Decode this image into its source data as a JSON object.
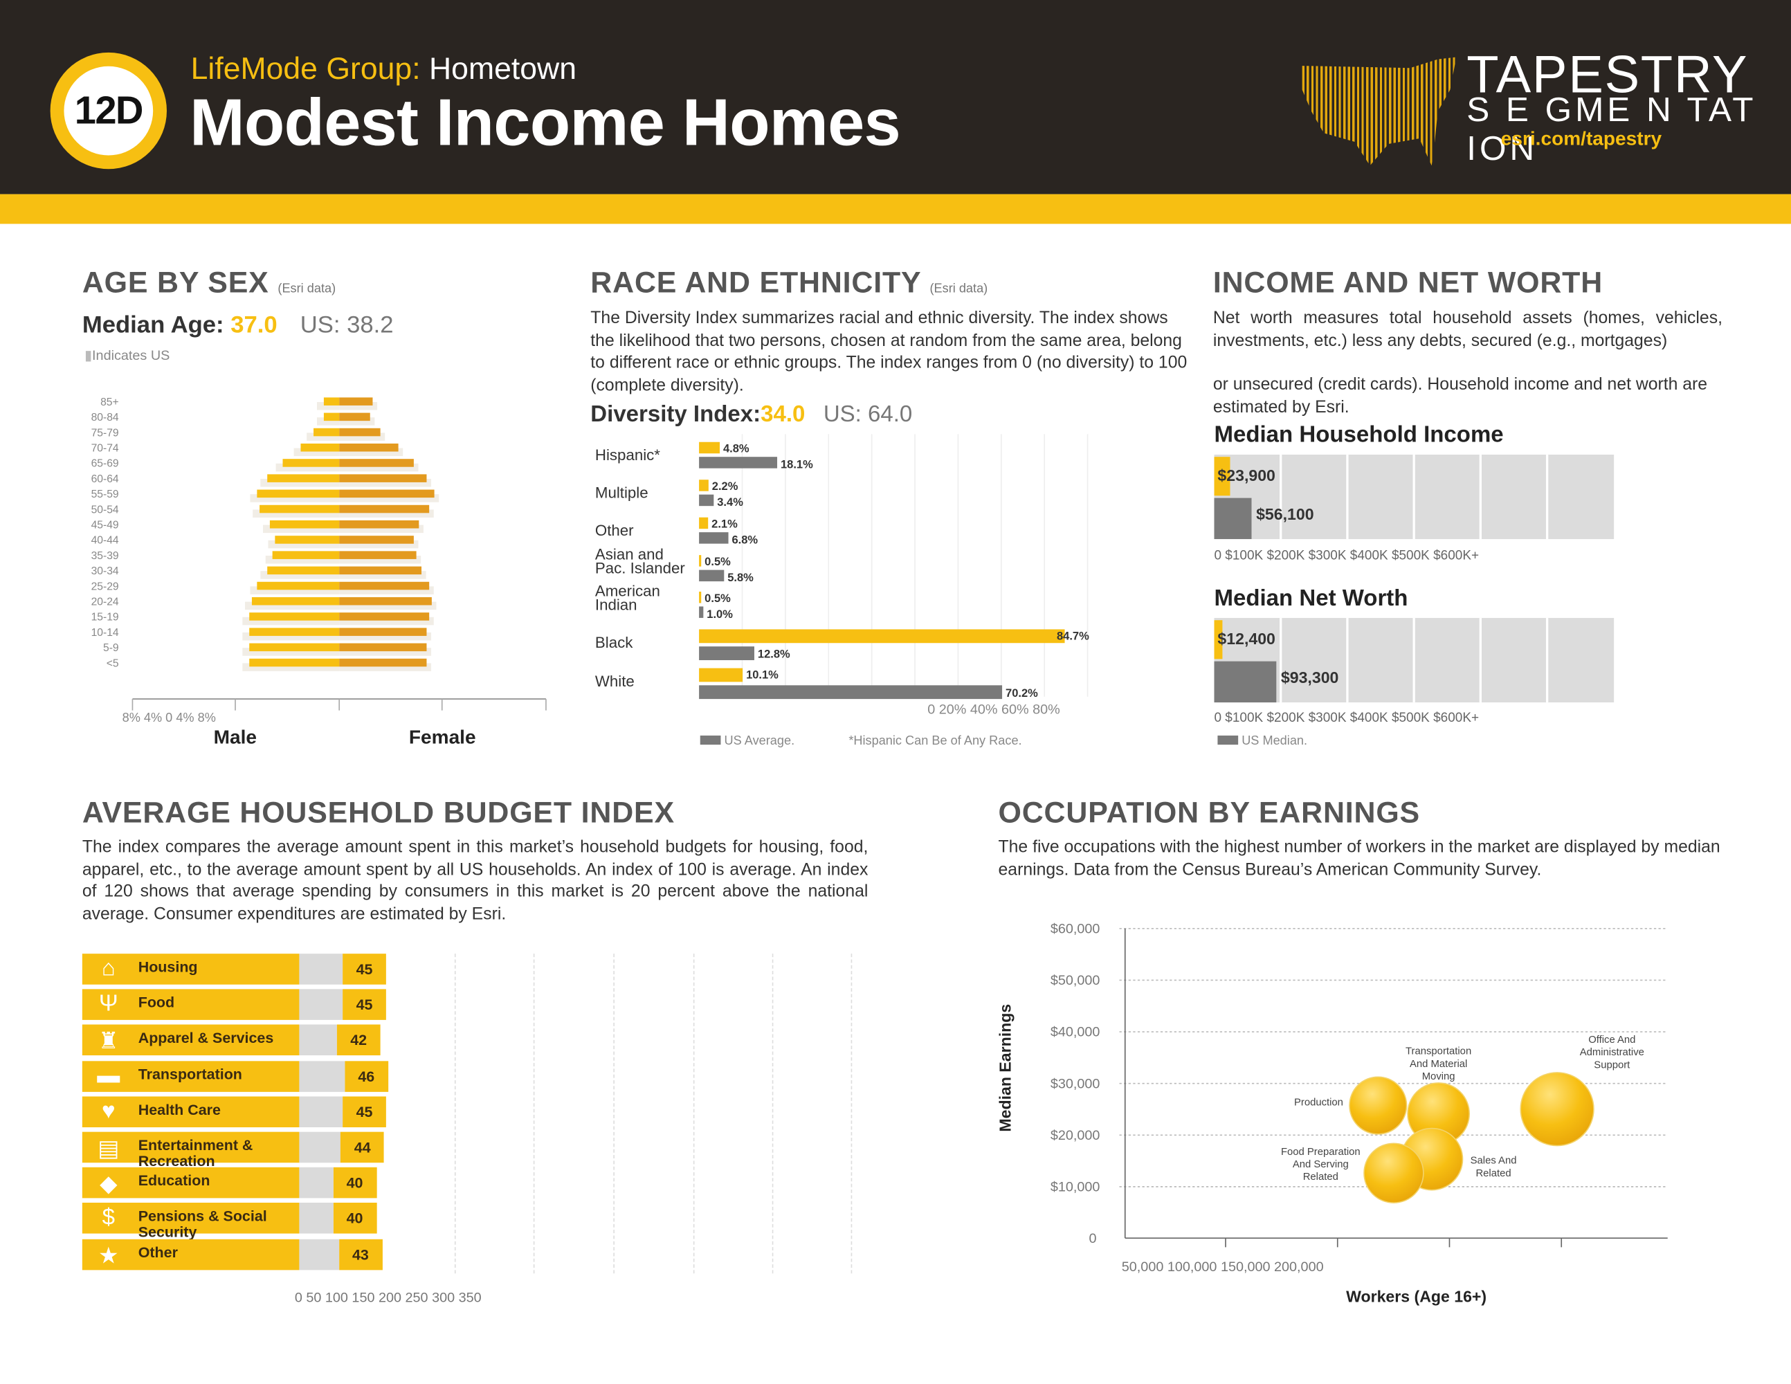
{
  "header": {
    "segment_code": "12D",
    "lifemode_label": "LifeMode Group:",
    "lifemode_name": "Hometown",
    "title": "Modest Income Homes",
    "brand_line1": "TAPESTRY",
    "brand_line2": "S E GME N TAT ION",
    "brand_url": "esri.com/tapestry"
  },
  "colors": {
    "accent": "#f7bf12",
    "dark": "#2a2521",
    "us": "#7a7a7a",
    "female": "#e39a1f"
  },
  "age": {
    "heading": "AGE BY SEX",
    "source": "(Esri data)",
    "median_label": "Median Age:",
    "median_value": "37.0",
    "us_median": "US: 38.2",
    "us_note": "Indicates US",
    "axis_text": "8% 4% 0 4% 8%",
    "male_label": "Male",
    "female_label": "Female"
  },
  "race": {
    "heading": "RACE AND ETHNICITY",
    "source": "(Esri data)",
    "description": "The Diversity Index summarizes racial and ethnic diversity. The index shows the likelihood that two persons, chosen at random from the same area, belong to different race or ethnic groups. The index ranges from 0 (no diversity) to 100 (complete diversity).",
    "diversity_label": "Diversity Index:",
    "diversity_value": "34.0",
    "diversity_us": "US: 64.0",
    "axis_text": "0 20% 40% 60% 80%",
    "legend_us": "US Average.",
    "footnote": "*Hispanic Can Be of Any Race."
  },
  "income": {
    "heading": "INCOME AND NET WORTH",
    "description_1": "Net worth measures total household assets (homes, vehicles, investments, etc.) less any debts, secured (e.g., mortgages)",
    "description_2": "or unsecured (credit cards). Household income and net worth are estimated by Esri.",
    "hh_income_title": "Median Household Income",
    "net_worth_title": "Median Net Worth",
    "axis_text": "0 $100K $200K $300K $400K $500K $600K+",
    "legend_us": "US Median."
  },
  "budget": {
    "heading": "AVERAGE HOUSEHOLD BUDGET INDEX",
    "description": "The index compares the average amount spent in this market’s household budgets for housing, food, apparel, etc., to the average amount spent by all US households. An index of 100 is average. An index of 120 shows that average spending by consumers in this market is 20 percent above the national average. Consumer expenditures are estimated by Esri.",
    "axis_text": "0 50 100 150 200 250 300 350"
  },
  "occupation": {
    "heading": "OCCUPATION BY EARNINGS",
    "description": "The five occupations with the highest number of workers in the market are displayed by median earnings. Data from the Census Bureau’s American Community Survey."
  },
  "chart_data": [
    {
      "type": "bar",
      "title": "Age by Sex",
      "orientation": "horizontal-pyramid",
      "categories": [
        "85+",
        "80-84",
        "75-79",
        "70-74",
        "65-69",
        "60-64",
        "55-59",
        "50-54",
        "45-49",
        "40-44",
        "35-39",
        "30-34",
        "25-29",
        "20-24",
        "15-19",
        "10-14",
        "5-9",
        "<5"
      ],
      "series": [
        {
          "name": "Male",
          "values": [
            0.6,
            0.6,
            1.0,
            1.5,
            2.2,
            2.8,
            3.2,
            3.1,
            2.7,
            2.5,
            2.6,
            2.8,
            3.2,
            3.4,
            3.5,
            3.5,
            3.5,
            3.5
          ]
        },
        {
          "name": "Female",
          "values": [
            1.3,
            1.2,
            1.6,
            2.3,
            2.9,
            3.4,
            3.7,
            3.5,
            3.1,
            2.9,
            3.0,
            3.2,
            3.5,
            3.6,
            3.5,
            3.4,
            3.4,
            3.4
          ]
        }
      ],
      "xlabel": "%",
      "xlim": [
        -8,
        8
      ]
    },
    {
      "type": "bar",
      "title": "Race and Ethnicity",
      "orientation": "horizontal",
      "categories": [
        "Hispanic*",
        "Multiple",
        "Other",
        "Asian and\nPac. Islander",
        "American\nIndian",
        "Black",
        "White"
      ],
      "series": [
        {
          "name": "Segment",
          "values": [
            4.8,
            2.2,
            2.1,
            0.5,
            0.5,
            84.7,
            10.1
          ],
          "labels": [
            "4.8%",
            "2.2%",
            "2.1%",
            "0.5%",
            "0.5%",
            "84.7%",
            "10.1%"
          ]
        },
        {
          "name": "US Average",
          "values": [
            18.1,
            3.4,
            6.8,
            5.8,
            1.0,
            12.8,
            70.2
          ],
          "labels": [
            "18.1%",
            "3.4%",
            "6.8%",
            "5.8%",
            "1.0%",
            "12.8%",
            "70.2%"
          ]
        }
      ],
      "xlim": [
        0,
        85
      ]
    },
    {
      "type": "bar",
      "title": "Median Household Income",
      "series": [
        {
          "name": "Segment",
          "value": 23900,
          "label": "$23,900"
        },
        {
          "name": "US Median",
          "value": 56100,
          "label": "$56,100"
        }
      ],
      "xlim": [
        0,
        600000
      ]
    },
    {
      "type": "bar",
      "title": "Median Net Worth",
      "series": [
        {
          "name": "Segment",
          "value": 12400,
          "label": "$12,400"
        },
        {
          "name": "US Median",
          "value": 93300,
          "label": "$93,300"
        }
      ],
      "xlim": [
        0,
        600000
      ]
    },
    {
      "type": "bar",
      "title": "Average Household Budget Index",
      "categories": [
        "Housing",
        "Food",
        "Apparel & Services",
        "Transportation",
        "Health Care",
        "Entertainment & Recreation",
        "Education",
        "Pensions & Social Security",
        "Other"
      ],
      "icons": [
        "house-icon",
        "utensils-icon",
        "shirt-icon",
        "car-icon",
        "heart-icon",
        "ticket-icon",
        "graduation-cap-icon",
        "coins-icon",
        "star-icon"
      ],
      "values": [
        45,
        45,
        42,
        46,
        45,
        44,
        40,
        40,
        43
      ],
      "xlim": [
        0,
        350
      ]
    },
    {
      "type": "scatter",
      "title": "Occupation by Earnings",
      "xlabel": "Workers (Age 16+)",
      "ylabel": "Median Earnings",
      "x_ticks": [
        "50,000",
        "100,000",
        "150,000",
        "200,000"
      ],
      "y_ticks": [
        "$60,000",
        "$50,000",
        "$40,000",
        "$30,000",
        "$20,000",
        "$10,000",
        "0"
      ],
      "xlim": [
        0,
        250000
      ],
      "ylim": [
        0,
        60000
      ],
      "points": [
        {
          "label": "Production",
          "x": 113000,
          "y": 25700,
          "size": 25
        },
        {
          "label": "Transportation And Material Moving",
          "x": 140000,
          "y": 24100,
          "size": 27
        },
        {
          "label": "Office And Administrative Support",
          "x": 193000,
          "y": 25000,
          "size": 32
        },
        {
          "label": "Sales And Related",
          "x": 137000,
          "y": 15300,
          "size": 27
        },
        {
          "label": "Food Preparation And Serving Related",
          "x": 120000,
          "y": 12600,
          "size": 26
        }
      ]
    }
  ]
}
